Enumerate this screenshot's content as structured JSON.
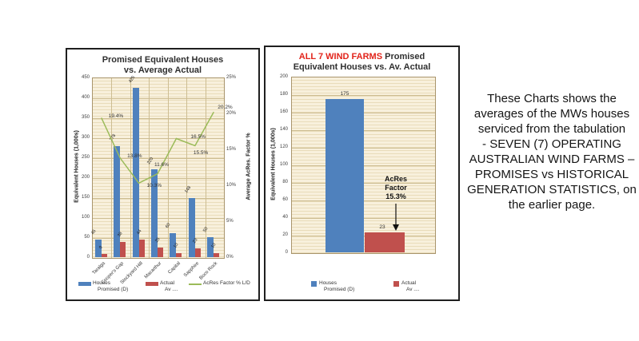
{
  "colors": {
    "houses_promised_bar": "#4f81bd",
    "actual_av_bar": "#c0504d",
    "acres_factor_line": "#9bbb59",
    "plot_background": "#f8f0dc",
    "title_red": "#e2231a",
    "chart_border": "#1f1f1f"
  },
  "caption": {
    "text": "These Charts shows the averages  of the MWs houses serviced from the tabulation -  SEVEN (7) OPERATING AUSTRALIAN WIND FARMS – PROMISES vs HISTORICAL GENERATION STATISTICS, on the earlier page.",
    "lines": [
      "These Charts shows the",
      "averages  of the MWs houses",
      "serviced from the tabulation",
      "-  SEVEN (7) OPERATING",
      "AUSTRALIAN WIND FARMS –",
      "PROMISES vs HISTORICAL",
      "GENERATION STATISTICS, on",
      "the earlier page."
    ]
  },
  "chart_data": [
    {
      "type": "bar",
      "title": "Promised Equivalent Houses vs. Average Actual",
      "title_lines": [
        "Promised Equivalent Houses",
        "vs. Average Actual"
      ],
      "categories": [
        "Taralga",
        "Cooper's Gap",
        "Stockyard Hill",
        "Macarthur",
        "Capital",
        "Sapphire",
        "Boco Rock"
      ],
      "series": [
        {
          "name": "Houses Promised (D)",
          "legend_lines": [
            "Houses",
            "Promised (D)"
          ],
          "type": "bar",
          "color": "#4f81bd",
          "axis": "left",
          "values": [
            45,
            278,
            425,
            220,
            60,
            148,
            50
          ]
        },
        {
          "name": "Actual Av....",
          "legend_lines": [
            "Actual",
            "Av ...."
          ],
          "type": "bar",
          "color": "#c0504d",
          "axis": "left",
          "values": [
            9,
            38,
            44,
            25,
            10,
            23,
            10
          ]
        },
        {
          "name": "AcRes Factor % L/D",
          "type": "line",
          "color": "#9bbb59",
          "axis": "right",
          "values": [
            19.4,
            13.8,
            10.3,
            11.6,
            16.5,
            15.5,
            20.2
          ],
          "point_labels": [
            "19.4%",
            "13.8%",
            "10.3%",
            "11.6%",
            "16.5%",
            "15.5%",
            "20.2%"
          ]
        }
      ],
      "ylabel_left": "Equivalent Houses (1,000s)",
      "ylabel_right": "Average AcRes. Factor %",
      "ylim_left": [
        0,
        450
      ],
      "ystep_left": 50,
      "ylim_right": [
        0,
        25
      ],
      "ystep_right": 5,
      "grid": true,
      "legend_position": "bottom"
    },
    {
      "type": "bar",
      "title": "ALL 7 WIND FARMS Promised Equivalent Houses vs. Av. Actual",
      "title_red_part": "ALL 7 WIND FARMS",
      "title_black_part": " Promised",
      "title_line2": "Equivalent Houses vs. Av. Actual",
      "categories": [
        "Houses Promised (D)",
        "Actual Av ...."
      ],
      "values": [
        175,
        23
      ],
      "series": [
        {
          "name": "Houses Promised (D)",
          "legend_lines": [
            "Houses",
            "Promised (D)"
          ],
          "color": "#4f81bd",
          "values": [
            175
          ]
        },
        {
          "name": "Actual Av ....",
          "legend_lines": [
            "Actual",
            "Av ...."
          ],
          "color": "#c0504d",
          "values": [
            23
          ]
        }
      ],
      "ylabel": "Equivalent Houses (1,000s)",
      "ylim": [
        0,
        200
      ],
      "ystep": 20,
      "annotation": {
        "text": "AcRes Factor 15.3%",
        "lines": [
          "AcRes",
          "Factor",
          "15.3%"
        ]
      },
      "grid": true,
      "legend_position": "bottom"
    }
  ]
}
